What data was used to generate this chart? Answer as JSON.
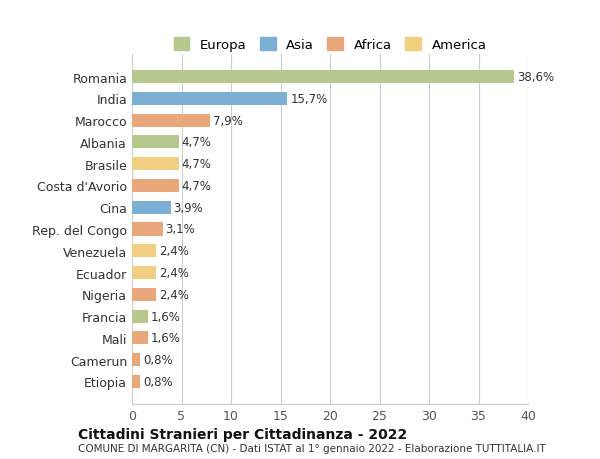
{
  "categories": [
    "Etiopia",
    "Camerun",
    "Mali",
    "Francia",
    "Nigeria",
    "Ecuador",
    "Venezuela",
    "Rep. del Congo",
    "Cina",
    "Costa d'Avorio",
    "Brasile",
    "Albania",
    "Marocco",
    "India",
    "Romania"
  ],
  "values": [
    0.8,
    0.8,
    1.6,
    1.6,
    2.4,
    2.4,
    2.4,
    3.1,
    3.9,
    4.7,
    4.7,
    4.7,
    7.9,
    15.7,
    38.6
  ],
  "labels": [
    "0,8%",
    "0,8%",
    "1,6%",
    "1,6%",
    "2,4%",
    "2,4%",
    "2,4%",
    "3,1%",
    "3,9%",
    "4,7%",
    "4,7%",
    "4,7%",
    "7,9%",
    "15,7%",
    "38,6%"
  ],
  "colors": [
    "#e8a87c",
    "#e8a87c",
    "#e8a87c",
    "#b5c98e",
    "#e8a87c",
    "#f0d080",
    "#f0d080",
    "#e8a87c",
    "#7bafd4",
    "#e8a87c",
    "#f0d080",
    "#b5c98e",
    "#e8a87c",
    "#7bafd4",
    "#b5c98e"
  ],
  "continent_colors": {
    "Europa": "#b5c98e",
    "Asia": "#7bafd4",
    "Africa": "#e8a87c",
    "America": "#f0d080"
  },
  "title": "Cittadini Stranieri per Cittadinanza - 2022",
  "subtitle": "COMUNE DI MARGARITA (CN) - Dati ISTAT al 1° gennaio 2022 - Elaborazione TUTTITALIA.IT",
  "xlim": [
    0,
    40
  ],
  "xticks": [
    0,
    5,
    10,
    15,
    20,
    25,
    30,
    35,
    40
  ],
  "background_color": "#ffffff",
  "grid_color": "#cccccc"
}
